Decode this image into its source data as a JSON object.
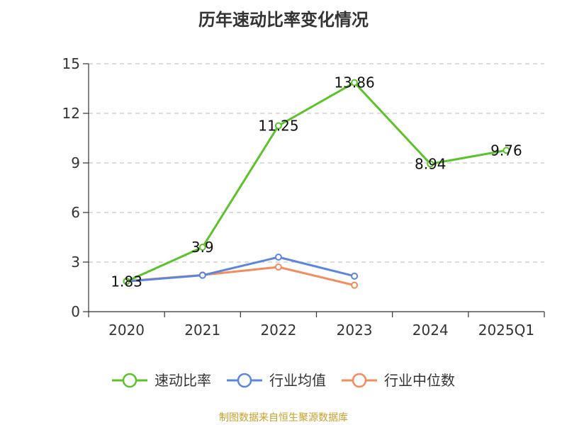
{
  "chart_data": {
    "type": "line",
    "title": "历年速动比率变化情况",
    "categories": [
      "2020",
      "2021",
      "2022",
      "2023",
      "2024",
      "2025Q1"
    ],
    "ylim": [
      0,
      15
    ],
    "yticks": [
      0,
      3,
      6,
      9,
      12,
      15
    ],
    "grid": true,
    "legend_position": "bottom",
    "series": [
      {
        "name": "速动比率",
        "color": "#5cc22a",
        "values": [
          1.83,
          3.9,
          11.25,
          13.86,
          8.94,
          9.76
        ],
        "labels": [
          "1.83",
          "3.9",
          "11.25",
          "13.86",
          "8.94",
          "9.76"
        ]
      },
      {
        "name": "行业均值",
        "color": "#5b86de",
        "values": [
          1.83,
          2.2,
          3.3,
          2.15,
          null,
          null
        ]
      },
      {
        "name": "行业中位数",
        "color": "#f48b5a",
        "values": [
          1.85,
          2.22,
          2.7,
          1.6,
          null,
          null
        ]
      }
    ]
  },
  "source_text": "制图数据来自恒生聚源数据库"
}
